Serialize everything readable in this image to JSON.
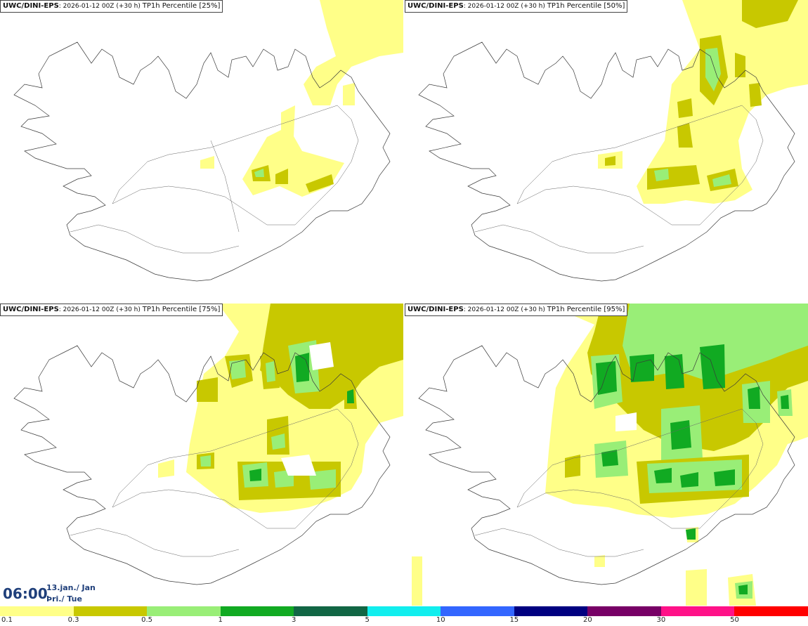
{
  "panels": [
    {
      "source": "UWC/DINI-EPS",
      "info": "2026-01-12 00Z (+30 h)",
      "product": "TP1h Percentile [25%]"
    },
    {
      "source": "UWC/DINI-EPS",
      "info": "2026-01-12 00Z (+30 h)",
      "product": "TP1h Percentile [50%]"
    },
    {
      "source": "UWC/DINI-EPS",
      "info": "2026-01-12 00Z (+30 h)",
      "product": "TP1h Percentile [75%]"
    },
    {
      "source": "UWC/DINI-EPS",
      "info": "2026-01-12 00Z (+30 h)",
      "product": "TP1h Percentile [95%]"
    }
  ],
  "valid": {
    "time": "06:00",
    "date": "13.jan./ Jan",
    "weekday": "Þri./ Tue"
  },
  "legend": {
    "colors": [
      "#ffff88",
      "#c8c800",
      "#99ee77",
      "#11aa22",
      "#116644",
      "#11eeee",
      "#3366ff",
      "#000080",
      "#770066",
      "#ff1188",
      "#ff0000"
    ],
    "ticks": [
      "0.1",
      "0.3",
      "0.5",
      "1",
      "3",
      "5",
      "10",
      "15",
      "20",
      "30",
      "50"
    ]
  }
}
